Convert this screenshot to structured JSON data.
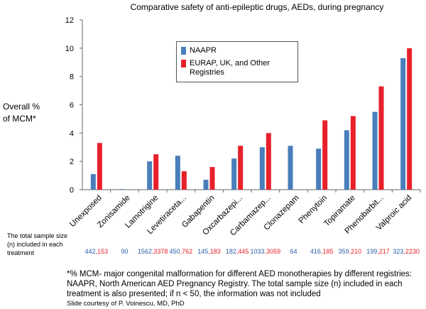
{
  "chart_data": {
    "type": "bar",
    "title": "Comparative safety of anti-epileptic drugs, AEDs, during pregnancy",
    "ylabel_lines": [
      "Overall %",
      "of MCM*"
    ],
    "ylim": [
      0,
      12
    ],
    "yticks": [
      0,
      2,
      4,
      6,
      8,
      10,
      12
    ],
    "grid": false,
    "legend_position": "upper-left",
    "categories": [
      "Unexposed",
      "Zonisamide",
      "Lamotrigine",
      "Levetiraceta...",
      "Gabapentin",
      "Oxcarbazepi...",
      "Carbamazep...",
      "Clonazepam",
      "Phenytoin",
      "Topiramate",
      "Phenobarbit...",
      "Valproic acid"
    ],
    "series": [
      {
        "name": "NAAPR",
        "color": "#4a7ebb",
        "values": [
          1.1,
          0.0,
          2.0,
          2.4,
          0.7,
          2.2,
          3.0,
          3.1,
          2.9,
          4.2,
          5.5,
          9.3
        ]
      },
      {
        "name": "EURAP, UK, and Other Registries",
        "color": "#e8202a",
        "values": [
          3.3,
          null,
          2.5,
          1.3,
          1.6,
          3.1,
          4.0,
          null,
          4.9,
          5.2,
          7.3,
          10.0
        ]
      }
    ],
    "sample_sizes": [
      {
        "naapr": "442",
        "other": "153"
      },
      {
        "naapr": "90",
        "other": ""
      },
      {
        "naapr": "1562",
        "other": "3378"
      },
      {
        "naapr": "450",
        "other": "762"
      },
      {
        "naapr": "145",
        "other": "183"
      },
      {
        "naapr": "182",
        "other": "445"
      },
      {
        "naapr": "1033",
        "other": "3059"
      },
      {
        "naapr": "64",
        "other": ""
      },
      {
        "naapr": "416",
        "other": "185"
      },
      {
        "naapr": "359",
        "other": "210"
      },
      {
        "naapr": "199",
        "other": "217"
      },
      {
        "naapr": "323",
        "other": "2230"
      }
    ]
  },
  "sample_caption": "The total sample size (n) included in each treatment",
  "footnote": "*% MCM- major congenital malformation for different AED monotherapies by different registries: NAAPR, North American AED Pregnancy Registry.  The total sample size (n) included in each treatment is also presented; if n < 50, the information was not included",
  "credit": "Slide courtesy of P. Voinescu, MD, PhD"
}
